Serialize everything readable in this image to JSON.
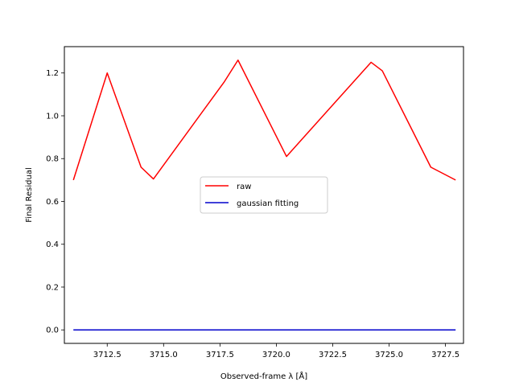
{
  "chart_data": {
    "type": "line",
    "title": "",
    "xlabel": "Observed-frame λ [Å]",
    "ylabel": "Final Residual",
    "xlim": [
      3710.6,
      3728.3
    ],
    "ylim": [
      -0.063,
      1.323
    ],
    "x_ticks": [
      3712.5,
      3715.0,
      3717.5,
      3720.0,
      3722.5,
      3725.0,
      3727.5
    ],
    "x_tick_labels": [
      "3712.5",
      "3715.0",
      "3717.5",
      "3720.0",
      "3722.5",
      "3725.0",
      "3727.5"
    ],
    "y_ticks": [
      0.0,
      0.2,
      0.4,
      0.6,
      0.8,
      1.0,
      1.2
    ],
    "y_tick_labels": [
      "0.0",
      "0.2",
      "0.4",
      "0.6",
      "0.8",
      "1.0",
      "1.2"
    ],
    "grid": false,
    "legend_position": "center",
    "series": [
      {
        "name": "raw",
        "color": "#ff0000",
        "x": [
          3711.0,
          3712.5,
          3714.0,
          3714.55,
          3717.7,
          3718.3,
          3720.45,
          3724.2,
          3724.7,
          3726.85,
          3727.95
        ],
        "y": [
          0.7,
          1.2,
          0.76,
          0.705,
          1.16,
          1.26,
          0.81,
          1.25,
          1.21,
          0.76,
          0.7
        ]
      },
      {
        "name": "gaussian fitting",
        "color": "#0000cc",
        "x": [
          3711.0,
          3727.95
        ],
        "y": [
          0.0,
          0.0
        ]
      }
    ]
  }
}
